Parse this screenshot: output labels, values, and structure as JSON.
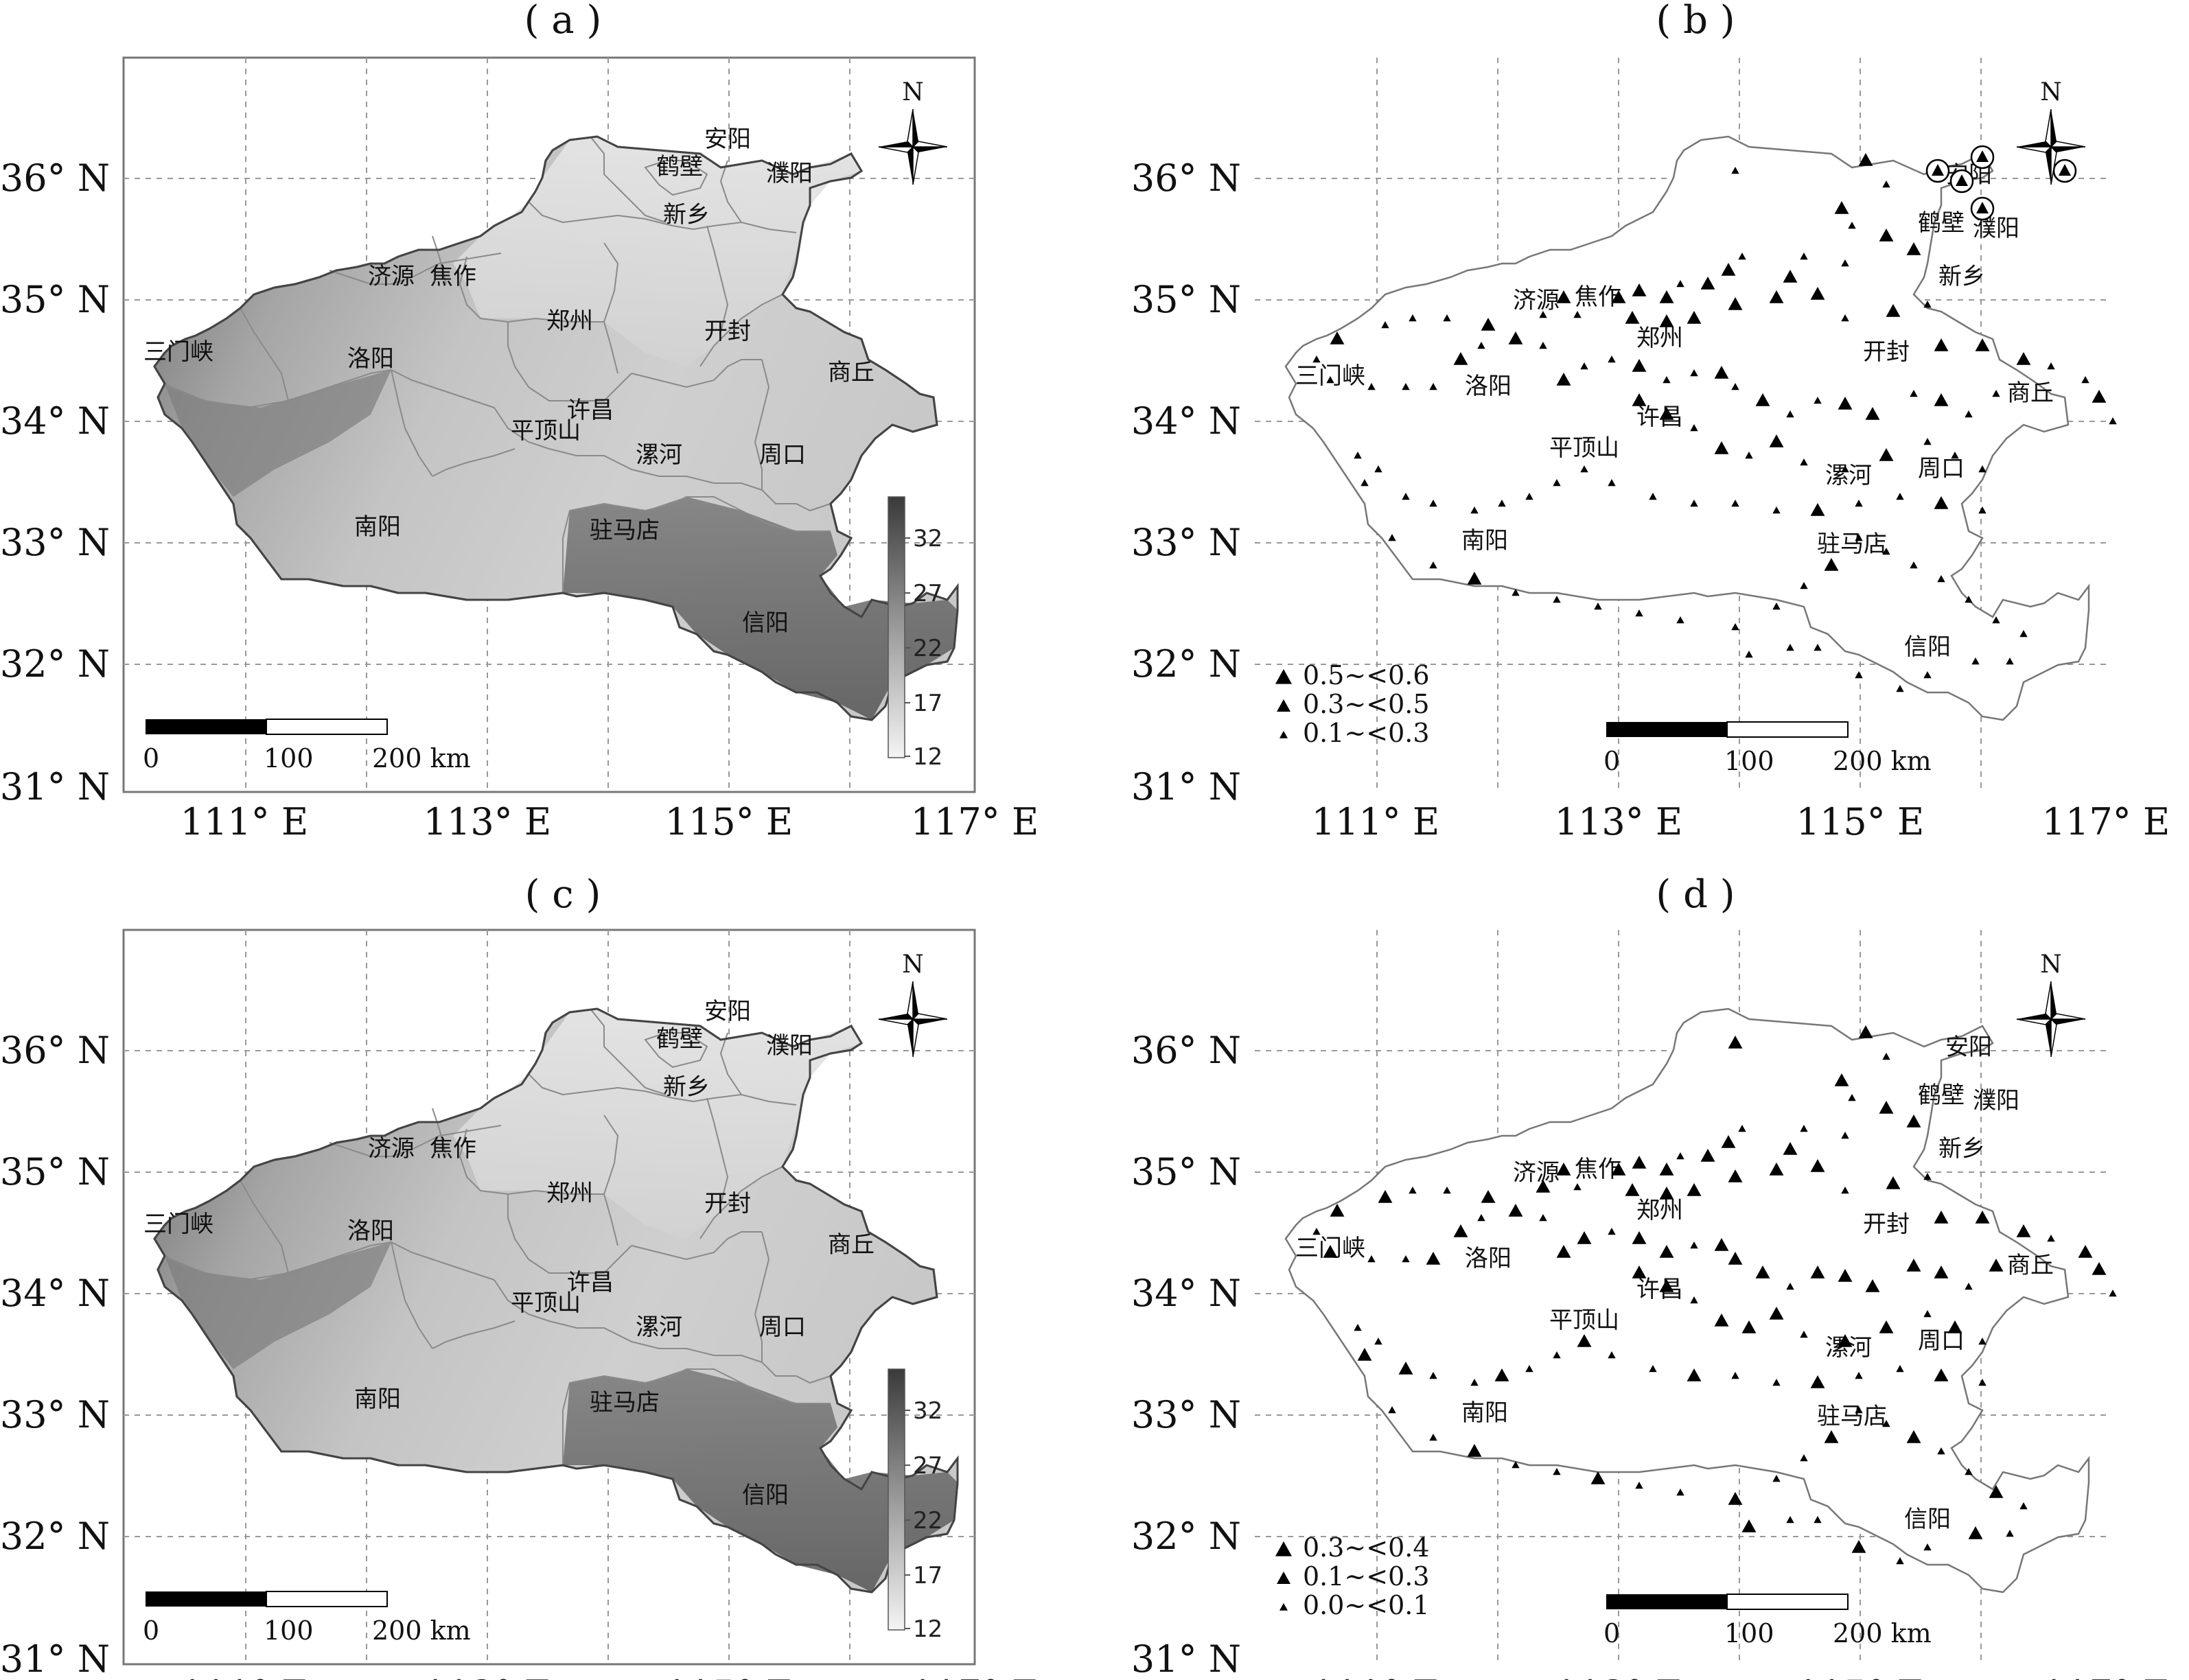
{
  "panels": [
    {
      "id": "a",
      "title": "( a )",
      "type": "raster",
      "colorbar": [
        "32",
        "27",
        "22",
        "17",
        "12"
      ]
    },
    {
      "id": "b",
      "title": "( b )",
      "type": "points",
      "legend": [
        "0.5~<0.6",
        "0.3~<0.5",
        "0.1~<0.3"
      ]
    },
    {
      "id": "c",
      "title": "( c )",
      "type": "raster",
      "colorbar": [
        "32",
        "27",
        "22",
        "17",
        "12"
      ]
    },
    {
      "id": "d",
      "title": "( d )",
      "type": "points",
      "legend": [
        "0.3~<0.4",
        "0.1~<0.3",
        "0.0~<0.1"
      ]
    }
  ],
  "axes": {
    "lat_labels": [
      "36° N",
      "35° N",
      "34° N",
      "33° N",
      "32° N",
      "31° N"
    ],
    "lon_labels": [
      "111° E",
      "113° E",
      "115° E",
      "117° E"
    ]
  },
  "cities": [
    "安阳",
    "鹤壁",
    "濮阳",
    "新乡",
    "济源",
    "焦作",
    "郑州",
    "开封",
    "三门峡",
    "洛阳",
    "商丘",
    "许昌",
    "平顶山",
    "漯河",
    "周口",
    "南阳",
    "驻马店",
    "信阳"
  ],
  "scalebar": {
    "labels": [
      "0",
      "100",
      "200 km"
    ]
  },
  "north_label": "N",
  "colors": {
    "frame": "#777777",
    "grid": "#999999",
    "boundary": "#444444",
    "marker": "#000000"
  }
}
